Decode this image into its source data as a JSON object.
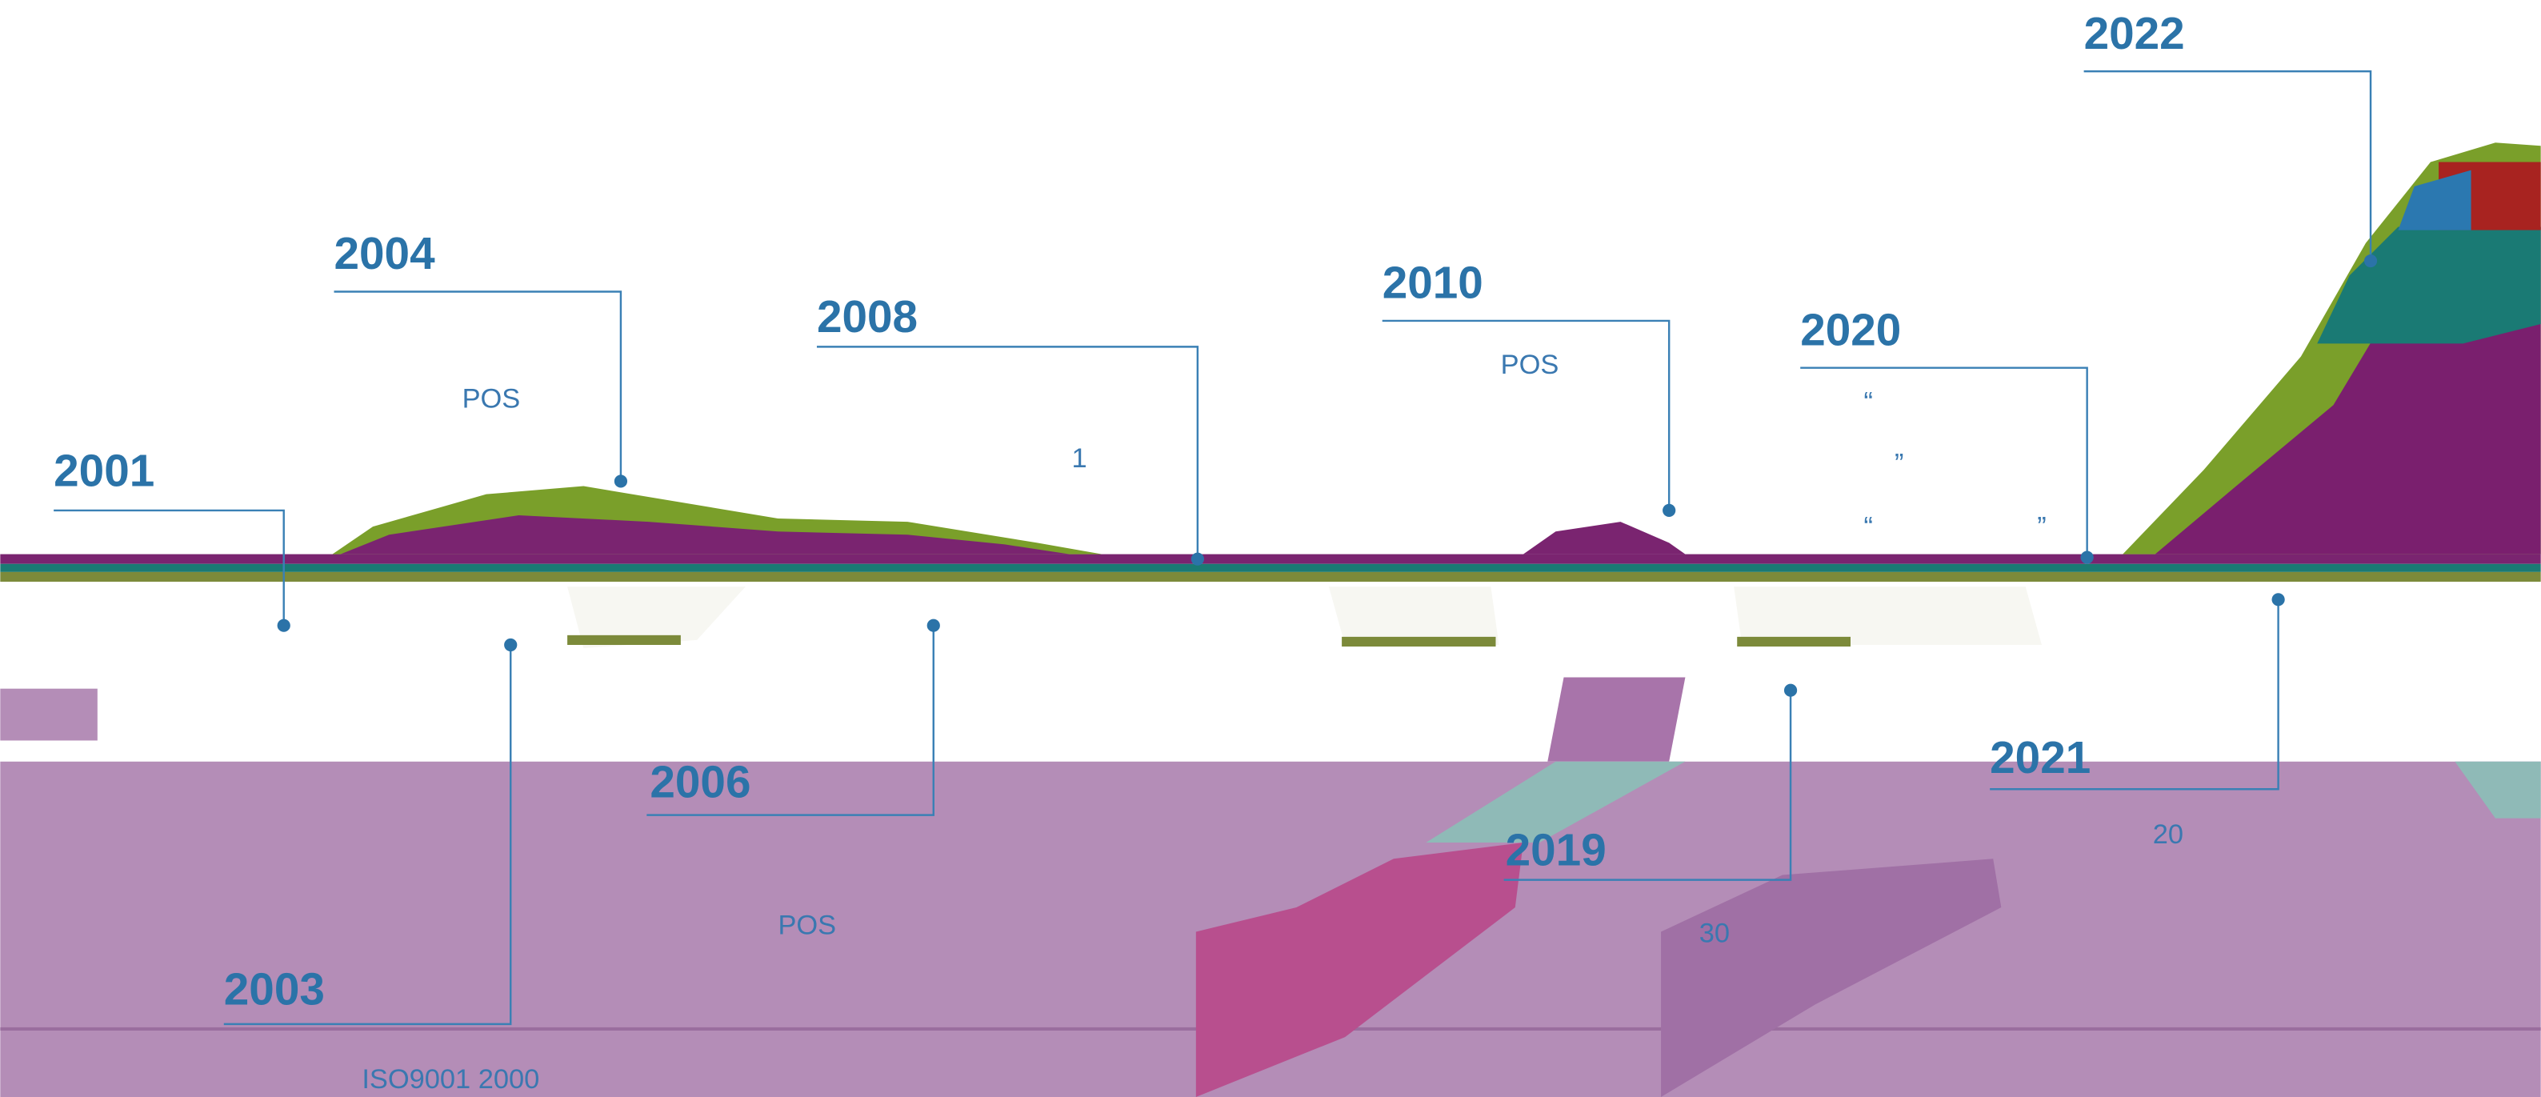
{
  "events": [
    {
      "year": "2001",
      "notes": []
    },
    {
      "year": "2003",
      "notes": [
        "ISO9001 2000"
      ]
    },
    {
      "year": "2004",
      "notes": [
        "POS"
      ]
    },
    {
      "year": "2006",
      "notes": [
        "POS"
      ]
    },
    {
      "year": "2008",
      "notes": [
        "1"
      ]
    },
    {
      "year": "2010",
      "notes": [
        "POS"
      ]
    },
    {
      "year": "2019",
      "notes": [
        "30"
      ]
    },
    {
      "year": "2020",
      "notes": [
        "“",
        "”",
        "“",
        "”"
      ]
    },
    {
      "year": "2021",
      "notes": [
        "20"
      ]
    },
    {
      "year": "2022",
      "notes": []
    }
  ]
}
